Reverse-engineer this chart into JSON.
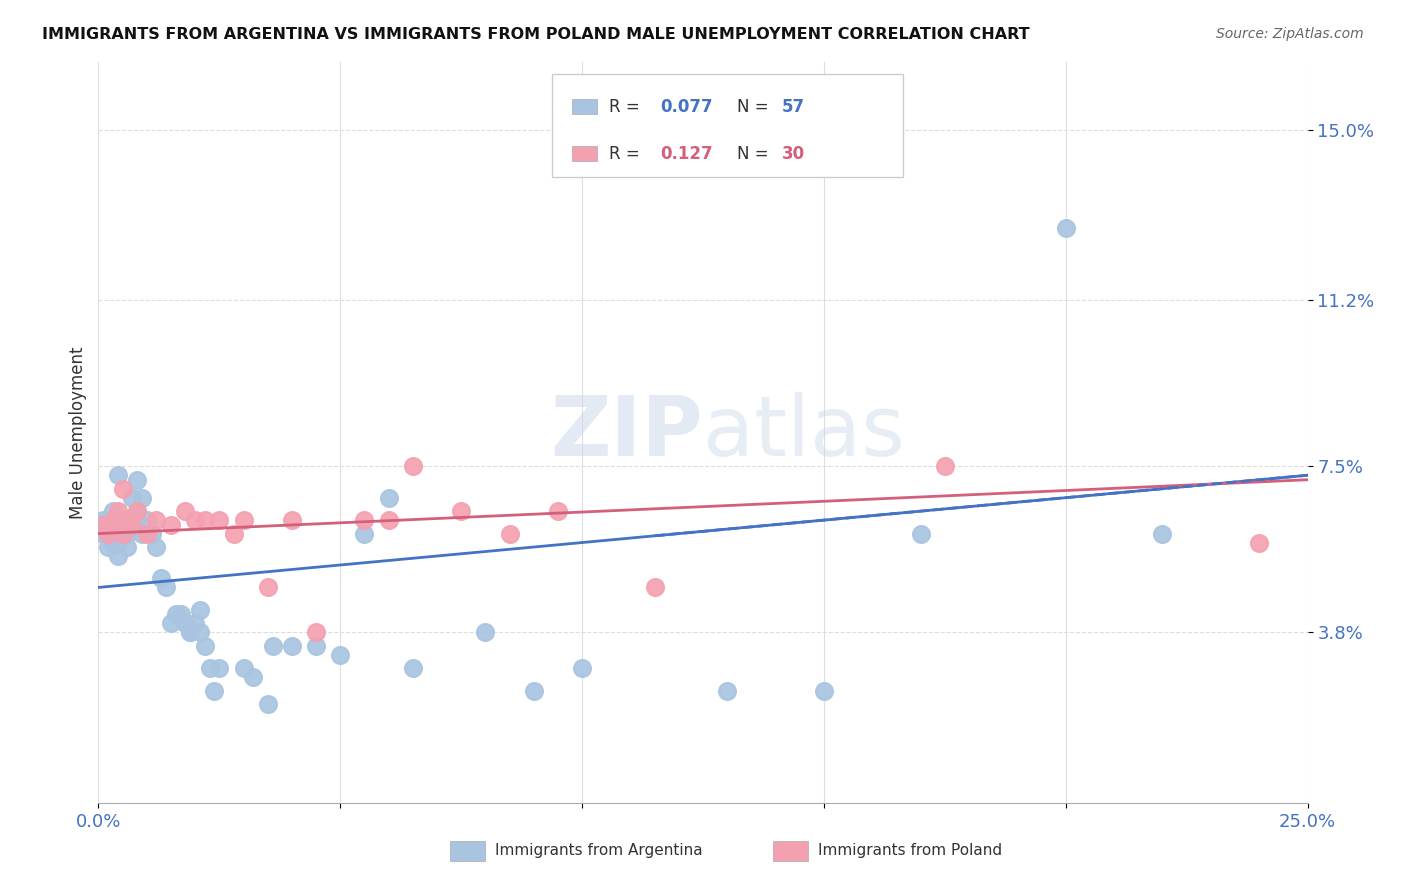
{
  "title": "IMMIGRANTS FROM ARGENTINA VS IMMIGRANTS FROM POLAND MALE UNEMPLOYMENT CORRELATION CHART",
  "source": "Source: ZipAtlas.com",
  "ylabel": "Male Unemployment",
  "ytick_labels": [
    "15.0%",
    "11.2%",
    "7.5%",
    "3.8%"
  ],
  "ytick_values": [
    0.15,
    0.112,
    0.075,
    0.038
  ],
  "xlim": [
    0.0,
    0.25
  ],
  "ylim": [
    0.0,
    0.165
  ],
  "argentina_color": "#a8c4e0",
  "poland_color": "#f4a0b0",
  "argentina_line_color": "#4472c4",
  "poland_line_color": "#d45f7a",
  "background_color": "#ffffff",
  "grid_color": "#dddddd",
  "argentina_x": [
    0.001,
    0.001,
    0.002,
    0.002,
    0.003,
    0.003,
    0.003,
    0.004,
    0.004,
    0.004,
    0.005,
    0.005,
    0.006,
    0.006,
    0.007,
    0.007,
    0.008,
    0.008,
    0.008,
    0.009,
    0.009,
    0.01,
    0.011,
    0.012,
    0.013,
    0.014,
    0.015,
    0.016,
    0.017,
    0.018,
    0.019,
    0.019,
    0.02,
    0.021,
    0.021,
    0.022,
    0.023,
    0.024,
    0.025,
    0.03,
    0.032,
    0.035,
    0.036,
    0.04,
    0.045,
    0.05,
    0.055,
    0.06,
    0.065,
    0.08,
    0.09,
    0.1,
    0.13,
    0.15,
    0.17,
    0.2,
    0.22
  ],
  "argentina_y": [
    0.06,
    0.063,
    0.057,
    0.06,
    0.058,
    0.062,
    0.065,
    0.055,
    0.058,
    0.073,
    0.06,
    0.063,
    0.057,
    0.06,
    0.063,
    0.068,
    0.065,
    0.063,
    0.072,
    0.06,
    0.068,
    0.063,
    0.06,
    0.057,
    0.05,
    0.048,
    0.04,
    0.042,
    0.042,
    0.04,
    0.038,
    0.038,
    0.04,
    0.038,
    0.043,
    0.035,
    0.03,
    0.025,
    0.03,
    0.03,
    0.028,
    0.022,
    0.035,
    0.035,
    0.035,
    0.033,
    0.06,
    0.068,
    0.03,
    0.038,
    0.025,
    0.03,
    0.025,
    0.025,
    0.06,
    0.128,
    0.06
  ],
  "poland_x": [
    0.001,
    0.002,
    0.003,
    0.004,
    0.005,
    0.005,
    0.006,
    0.007,
    0.008,
    0.01,
    0.012,
    0.015,
    0.018,
    0.02,
    0.022,
    0.025,
    0.028,
    0.03,
    0.035,
    0.04,
    0.045,
    0.055,
    0.06,
    0.065,
    0.075,
    0.085,
    0.095,
    0.115,
    0.175,
    0.24
  ],
  "poland_y": [
    0.062,
    0.06,
    0.063,
    0.065,
    0.06,
    0.07,
    0.063,
    0.062,
    0.065,
    0.06,
    0.063,
    0.062,
    0.065,
    0.063,
    0.063,
    0.063,
    0.06,
    0.063,
    0.048,
    0.063,
    0.038,
    0.063,
    0.063,
    0.075,
    0.065,
    0.06,
    0.065,
    0.048,
    0.075,
    0.058
  ],
  "arg_line_x0": 0.0,
  "arg_line_y0": 0.048,
  "arg_line_x1": 0.25,
  "arg_line_y1": 0.073,
  "pol_line_x0": 0.0,
  "pol_line_y0": 0.06,
  "pol_line_x1": 0.25,
  "pol_line_y1": 0.072
}
